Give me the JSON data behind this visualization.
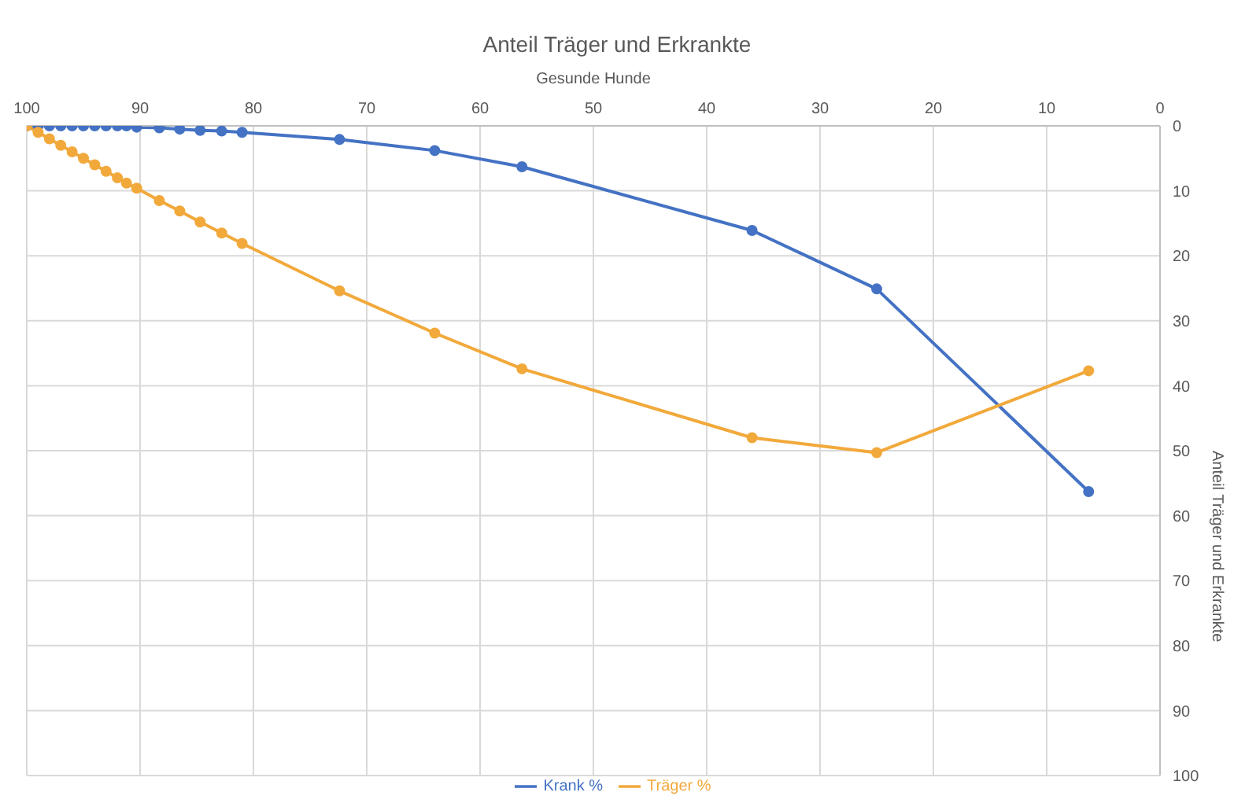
{
  "chart_data": {
    "type": "line",
    "title": "Anteil Träger und Erkrankte",
    "xlabel": "Gesunde Hunde",
    "ylabel": "Anteil Träger und Erkrankte",
    "x": [
      100,
      99,
      98,
      97,
      96,
      95,
      94,
      93,
      92,
      91.2,
      90.3,
      88.3,
      86.5,
      84.7,
      82.8,
      81,
      72.4,
      64,
      56.3,
      36,
      25,
      6.3
    ],
    "series": [
      {
        "name": "Krank %",
        "color": "#4472c4",
        "values": [
          0,
          0,
          0,
          0,
          0,
          0,
          0,
          0,
          0,
          0,
          0.2,
          0.3,
          0.5,
          0.7,
          0.8,
          1,
          2.1,
          3.8,
          6.3,
          16.1,
          25.1,
          56.3
        ]
      },
      {
        "name": "Träger %",
        "color": "#f2a93b",
        "values": [
          0,
          1,
          2,
          3,
          4,
          5,
          6,
          7,
          8,
          8.8,
          9.6,
          11.5,
          13.1,
          14.8,
          16.5,
          18.1,
          25.4,
          31.9,
          37.4,
          48,
          50.3,
          37.7
        ]
      }
    ],
    "xlim": [
      100,
      0
    ],
    "xticks": [
      100,
      90,
      80,
      70,
      60,
      50,
      40,
      30,
      20,
      10,
      0
    ],
    "ylim": [
      100,
      0
    ],
    "yticks": [
      0,
      10,
      20,
      30,
      40,
      50,
      60,
      70,
      80,
      90,
      100
    ],
    "grid": true,
    "legend": "bottom",
    "marker": "circle",
    "line_style": "solid"
  }
}
